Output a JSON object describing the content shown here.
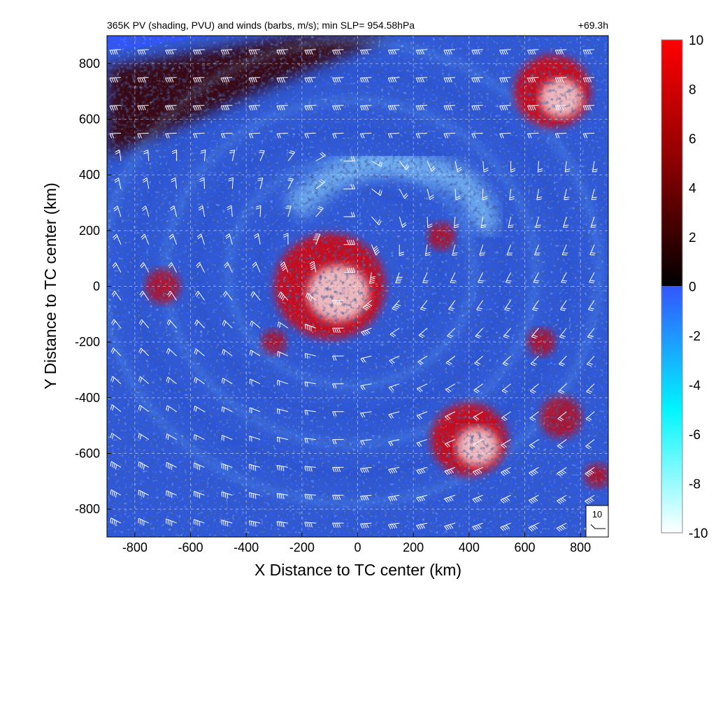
{
  "chart_data": {
    "type": "heatmap",
    "title": "365K PV (shading, PVU) and winds (barbs, m/s); min SLP= 954.58hPa",
    "time_label": "+69.3h",
    "xlabel": "X Distance to TC center (km)",
    "ylabel": "Y Distance to TC center (km)",
    "xlim": [
      -900,
      900
    ],
    "ylim": [
      -900,
      900
    ],
    "x_ticks": [
      "-800",
      "-600",
      "-400",
      "-200",
      "0",
      "200",
      "400",
      "600",
      "800"
    ],
    "y_ticks": [
      "800",
      "600",
      "400",
      "200",
      "0",
      "-200",
      "-400",
      "-600",
      "-800"
    ],
    "grid": true,
    "colorbar": {
      "range": [
        -10,
        10
      ],
      "ticks": [
        "10",
        "8",
        "6",
        "4",
        "2",
        "0",
        "-2",
        "-4",
        "-6",
        "-8",
        "-10"
      ],
      "colors": {
        "max": "#ff0000",
        "mid_pos": "#8b0000",
        "zero_pos": "#000000",
        "zero_neg": "#3355ff",
        "mid_neg": "#00ffff",
        "min": "#ffffff"
      }
    },
    "barb_reference": {
      "label": "10"
    },
    "features": [
      {
        "name": "tc_core_high_pv",
        "x": -100,
        "y": 0,
        "radius_km": 200
      },
      {
        "name": "upper_jet",
        "region": "northwest"
      },
      {
        "name": "southeast_high_pv",
        "x": 400,
        "y": -550
      },
      {
        "name": "northeast_high_pv",
        "x": 700,
        "y": 700
      }
    ]
  },
  "colors": {
    "plot_background": "#2f59d9",
    "high_pv": "#e00000",
    "low_pv": "#9fe8ff",
    "barb": "#ffffff"
  }
}
